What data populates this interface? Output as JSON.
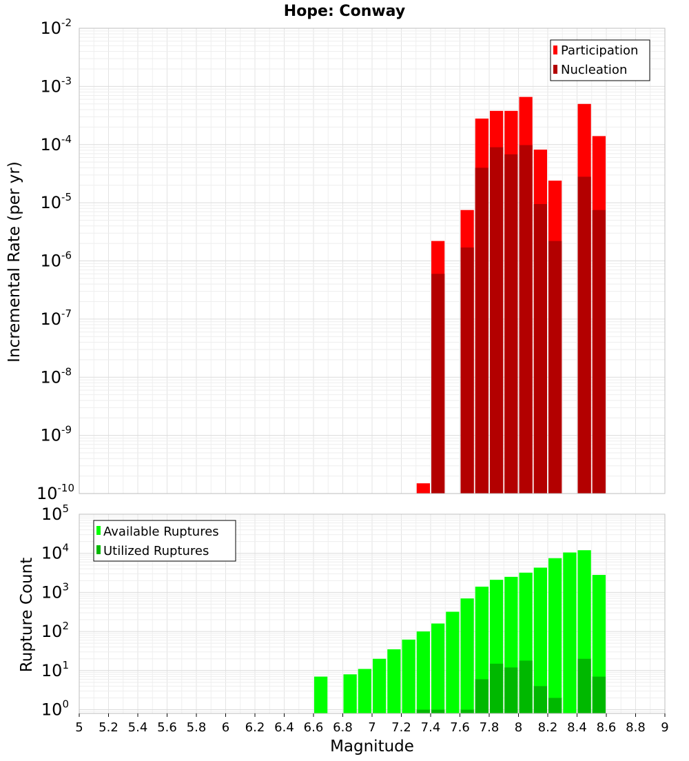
{
  "chart_data": [
    {
      "type": "bar",
      "title": "Hope: Conway",
      "xlabel": "",
      "ylabel": "Incremental Rate (per yr)",
      "yscale": "log",
      "ylim": [
        1e-10,
        0.01
      ],
      "xlim": [
        5,
        9
      ],
      "grid": true,
      "legend_position": "top-right",
      "bin_width": 0.1,
      "y_tick_labels": [
        {
          "base": "10",
          "exp": "-10"
        },
        {
          "base": "10",
          "exp": "-9"
        },
        {
          "base": "10",
          "exp": "-8"
        },
        {
          "base": "10",
          "exp": "-7"
        },
        {
          "base": "10",
          "exp": "-6"
        },
        {
          "base": "10",
          "exp": "-5"
        },
        {
          "base": "10",
          "exp": "-4"
        },
        {
          "base": "10",
          "exp": "-3"
        },
        {
          "base": "10",
          "exp": "-2"
        }
      ],
      "series": [
        {
          "name": "Participation",
          "color": "#ff0000",
          "x": [
            7.35,
            7.45,
            7.65,
            7.75,
            7.85,
            7.95,
            8.05,
            8.15,
            8.25,
            8.45,
            8.55
          ],
          "values": [
            1.5e-10,
            2.2e-06,
            7.5e-06,
            0.00028,
            0.00038,
            0.00038,
            0.00066,
            8.2e-05,
            2.4e-05,
            0.0005,
            0.00014
          ]
        },
        {
          "name": "Nucleation",
          "color": "#b30000",
          "x": [
            7.45,
            7.65,
            7.75,
            7.85,
            7.95,
            8.05,
            8.15,
            8.25,
            8.45,
            8.55
          ],
          "values": [
            6e-07,
            1.7e-06,
            4e-05,
            9e-05,
            6.8e-05,
            9.8e-05,
            9.5e-06,
            2.2e-06,
            2.8e-05,
            7.5e-06
          ]
        }
      ]
    },
    {
      "type": "bar",
      "title": "",
      "xlabel": "Magnitude",
      "ylabel": "Rupture Count",
      "yscale": "log",
      "ylim": [
        0.8,
        100000
      ],
      "xlim": [
        5,
        9
      ],
      "grid": true,
      "legend_position": "top-left",
      "bin_width": 0.1,
      "x_ticks": [
        "5",
        "5.2",
        "5.4",
        "5.6",
        "5.8",
        "6",
        "6.2",
        "6.4",
        "6.6",
        "6.8",
        "7",
        "7.2",
        "7.4",
        "7.6",
        "7.8",
        "8",
        "8.2",
        "8.4",
        "8.6",
        "8.8",
        "9"
      ],
      "y_tick_labels": [
        {
          "base": "10",
          "exp": "0"
        },
        {
          "base": "10",
          "exp": "1"
        },
        {
          "base": "10",
          "exp": "2"
        },
        {
          "base": "10",
          "exp": "3"
        },
        {
          "base": "10",
          "exp": "4"
        },
        {
          "base": "10",
          "exp": "5"
        }
      ],
      "series": [
        {
          "name": "Available Ruptures",
          "color": "#00ff00",
          "x": [
            6.65,
            6.85,
            6.95,
            7.05,
            7.15,
            7.25,
            7.35,
            7.45,
            7.55,
            7.65,
            7.75,
            7.85,
            7.95,
            8.05,
            8.15,
            8.25,
            8.35,
            8.45,
            8.55
          ],
          "values": [
            7,
            8,
            11,
            20,
            35,
            62,
            100,
            160,
            320,
            700,
            1400,
            2100,
            2500,
            3200,
            4300,
            7500,
            10500,
            12000,
            2800
          ]
        },
        {
          "name": "Utilized Ruptures",
          "color": "#00b800",
          "x": [
            7.35,
            7.45,
            7.65,
            7.75,
            7.85,
            7.95,
            8.05,
            8.15,
            8.25,
            8.45,
            8.55
          ],
          "values": [
            1,
            1,
            1,
            6,
            15,
            12,
            18,
            4,
            2,
            20,
            7
          ]
        }
      ]
    }
  ]
}
